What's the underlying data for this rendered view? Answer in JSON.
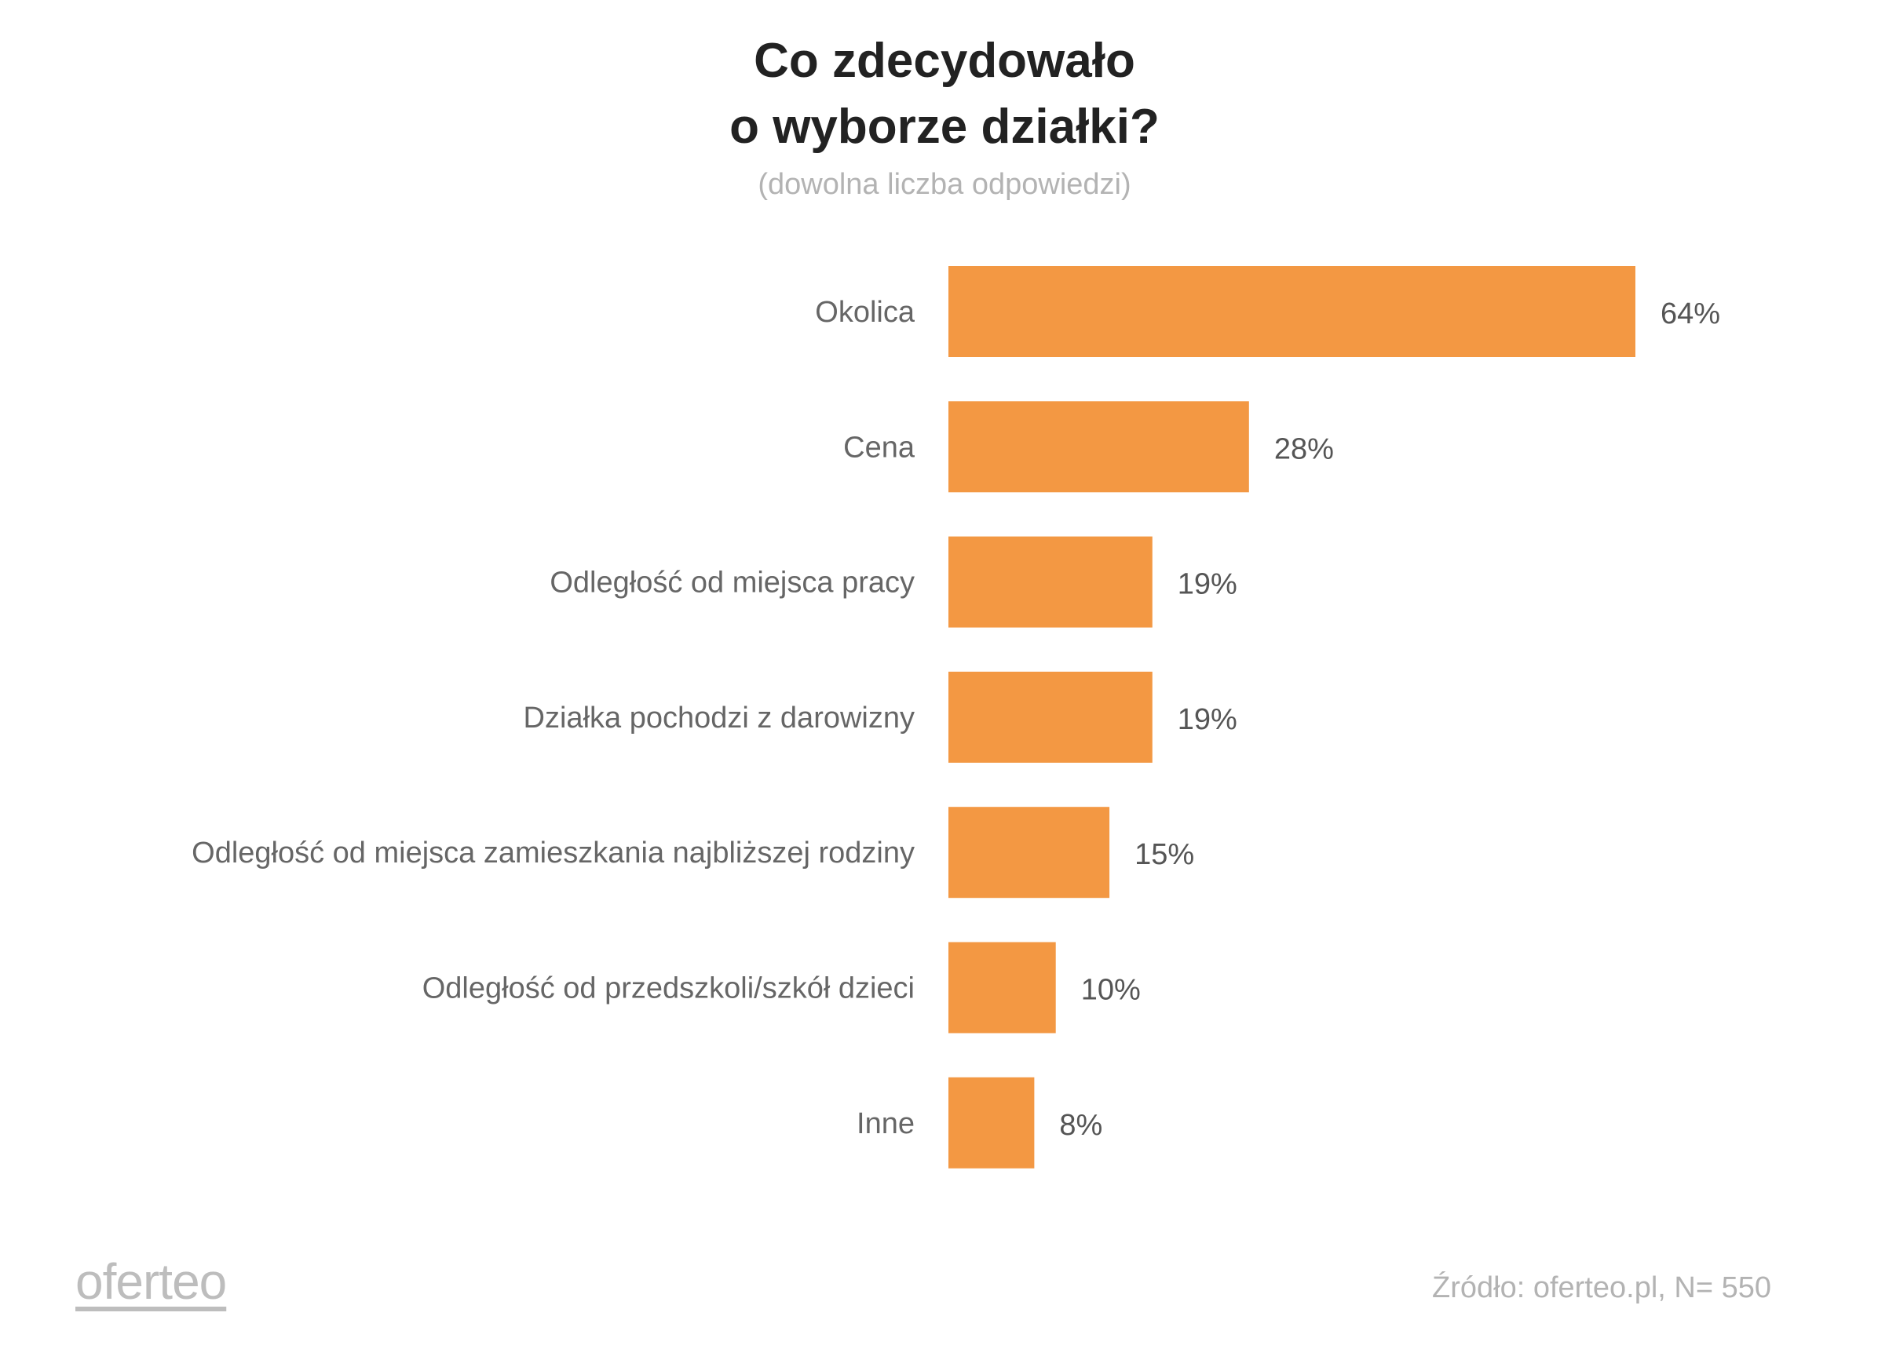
{
  "chart_data": {
    "type": "bar",
    "orientation": "horizontal",
    "title": "Co zdecydowało o wyborze działki?",
    "title_lines": [
      "Co zdecydowało",
      "o wyborze działki?"
    ],
    "subtitle": "(dowolna liczba odpowiedzi)",
    "categories": [
      "Okolica",
      "Cena",
      "Odległość od miejsca pracy",
      "Działka pochodzi z darowizny",
      "Odległość od miejsca zamieszkania najbliższej rodziny",
      "Odległość od przedszkoli/szkół dzieci",
      "Inne"
    ],
    "values": [
      64,
      28,
      19,
      19,
      15,
      10,
      8
    ],
    "value_labels": [
      "64%",
      "28%",
      "19%",
      "19%",
      "15%",
      "10%",
      "8%"
    ],
    "unit": "%",
    "xlim": [
      0,
      64
    ],
    "grid": false,
    "bar_color": "#F39843"
  },
  "footer": {
    "logo": "oferteo",
    "source": "Źródło: oferteo.pl, N= 550"
  }
}
